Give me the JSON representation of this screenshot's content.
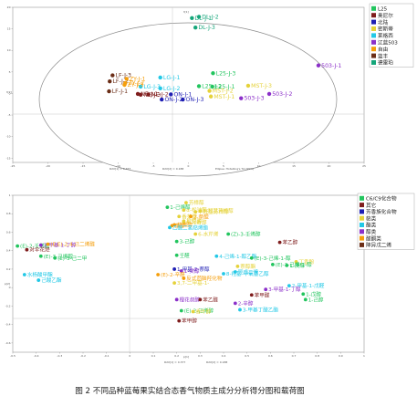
{
  "figure": {
    "caption": "图 2  不同品种蓝莓果实结合态香气物质主成分分析得分图和载荷图"
  },
  "chart_data": [
    {
      "type": "scatter",
      "plot": "score",
      "xlabel": "t[1]",
      "ylabel": "t[2]",
      "xlim": [
        -25,
        25
      ],
      "ylim": [
        -16,
        20
      ],
      "xticks": [
        -25,
        -20,
        -15,
        -10,
        -5,
        0,
        5,
        10,
        15,
        20,
        25
      ],
      "yticks": [
        -15,
        -10,
        -5,
        0,
        5,
        10,
        15,
        20
      ],
      "footer": [
        "R2X[1] = 0.377",
        "R2X[2] = 0.188",
        "Ellipse: Hotelling's T2 (95%)"
      ],
      "legend": [
        {
          "name": "L25",
          "color": "#22c55e"
        },
        {
          "name": "奥尼尔",
          "color": "#7f1d1d"
        },
        {
          "name": "北陆",
          "color": "#1e1eb4"
        },
        {
          "name": "密斯蒂",
          "color": "#e5d23a"
        },
        {
          "name": "莱格西",
          "color": "#22c8e6"
        },
        {
          "name": "辽蓝503",
          "color": "#8b2fc9"
        },
        {
          "name": "自由",
          "color": "#f59e0b"
        },
        {
          "name": "蓝丰",
          "color": "#6b2e17"
        },
        {
          "name": "德雷珀",
          "color": "#15a67a"
        }
      ],
      "points": [
        {
          "label": "DL-J-1",
          "x": 0.5,
          "y": 17.5,
          "series": 8
        },
        {
          "label": "DL-J-2",
          "x": 1.5,
          "y": 17.8,
          "series": 8
        },
        {
          "label": "DL-J-3",
          "x": 1.0,
          "y": 15.3,
          "series": 8
        },
        {
          "label": "L25-J-3",
          "x": 3.5,
          "y": 4.7,
          "series": 0
        },
        {
          "label": "L25-J-2",
          "x": 1.5,
          "y": 1.7,
          "series": 0
        },
        {
          "label": "L25-J-1",
          "x": 3.4,
          "y": 1.6,
          "series": 0
        },
        {
          "label": "503-J-1",
          "x": 18.5,
          "y": 6.5,
          "series": 5
        },
        {
          "label": "503-J-2",
          "x": 11.5,
          "y": -0.1,
          "series": 5
        },
        {
          "label": "503-J-3",
          "x": 7.5,
          "y": -1.1,
          "series": 5
        },
        {
          "label": "MST-J-3",
          "x": 8.5,
          "y": 1.8,
          "series": 3
        },
        {
          "label": "MST-J-2",
          "x": 3.0,
          "y": 0.6,
          "series": 3
        },
        {
          "label": "MST-J-1",
          "x": 3.2,
          "y": -0.7,
          "series": 3
        },
        {
          "label": "LF-J-3",
          "x": -10.8,
          "y": 4.2,
          "series": 7
        },
        {
          "label": "LF-J-2",
          "x": -11.2,
          "y": 2.8,
          "series": 7
        },
        {
          "label": "LF-J-1",
          "x": -11.3,
          "y": 0.5,
          "series": 7
        },
        {
          "label": "LG-J-1",
          "x": -4.0,
          "y": 3.7,
          "series": 4
        },
        {
          "label": "LG-J-2",
          "x": -4.0,
          "y": 1.2,
          "series": 4
        },
        {
          "label": "LG-J-3",
          "x": -6.8,
          "y": 1.6,
          "series": 4
        },
        {
          "label": "ZY-J-1",
          "x": -8.8,
          "y": 3.4,
          "series": 6
        },
        {
          "label": "ZY-J-2",
          "x": -9.0,
          "y": 2.4,
          "series": 6
        },
        {
          "label": "ZY-J-3",
          "x": -9.1,
          "y": 2.0,
          "series": 6
        },
        {
          "label": "NE-J-1",
          "x": -7.2,
          "y": -0.1,
          "series": 1
        },
        {
          "label": "NE-J-2",
          "x": -5.7,
          "y": -0.2,
          "series": 1
        },
        {
          "label": "NE-J-3",
          "x": -6.8,
          "y": -0.3,
          "series": 1
        },
        {
          "label": "ON-J-1",
          "x": -2.5,
          "y": -0.2,
          "series": 2
        },
        {
          "label": "ON-J-2",
          "x": -3.8,
          "y": -1.4,
          "series": 2
        },
        {
          "label": "ON-J-3",
          "x": -0.8,
          "y": -1.4,
          "series": 2
        }
      ]
    },
    {
      "type": "scatter",
      "plot": "loading",
      "xlabel": "p[1]",
      "ylabel": "p[2]",
      "xlim": [
        -0.5,
        1.0
      ],
      "ylim": [
        -0.7,
        1.0
      ],
      "xticks": [
        -0.5,
        -0.4,
        -0.3,
        -0.2,
        -0.1,
        0,
        0.1,
        0.2,
        0.3,
        0.4,
        0.5,
        0.6,
        0.7,
        0.8,
        0.9,
        1.0
      ],
      "yticks": [
        -0.6,
        -0.4,
        -0.2,
        0,
        0.2,
        0.4,
        0.6,
        0.8,
        1.0
      ],
      "footer": [
        "R2X[1] = 0.377",
        "R2X[2] = 0.188"
      ],
      "legend": [
        {
          "name": "C6/C9化合物",
          "color": "#22c55e"
        },
        {
          "name": "其它",
          "color": "#7f1d1d"
        },
        {
          "name": "芳香族化合物",
          "color": "#1e1eb4"
        },
        {
          "name": "萜类",
          "color": "#e5d23a"
        },
        {
          "name": "酯类",
          "color": "#22c8e6"
        },
        {
          "name": "醇类",
          "color": "#8b2fc9"
        },
        {
          "name": "醛酮类",
          "color": "#f59e0b"
        },
        {
          "name": "降异戊二烯",
          "color": "#6b2e17"
        }
      ],
      "points": [
        {
          "label": "1-己烯醇",
          "x": 0.16,
          "y": 0.87,
          "series": 0
        },
        {
          "label": "芳樟醇",
          "x": 0.24,
          "y": 0.92,
          "series": 3
        },
        {
          "label": "α-松油醇",
          "x": 0.23,
          "y": 0.84,
          "series": 3
        },
        {
          "label": "香茅醇",
          "x": 0.21,
          "y": 0.77,
          "series": 3
        },
        {
          "label": "橙花醇",
          "x": 0.23,
          "y": 0.72,
          "series": 3
        },
        {
          "label": "8-羟基芳樟醇",
          "x": 0.3,
          "y": 0.83,
          "series": 3
        },
        {
          "label": "4-羟基芳樟醇",
          "x": 0.28,
          "y": 0.82,
          "series": 3
        },
        {
          "label": "2-萘醌",
          "x": 0.26,
          "y": 0.77,
          "series": 6
        },
        {
          "label": "8-羟香醇",
          "x": 0.23,
          "y": 0.71,
          "series": 3
        },
        {
          "label": "萘醇",
          "x": 0.18,
          "y": 0.67,
          "series": 6
        },
        {
          "label": "萜烯醇",
          "x": 0.19,
          "y": 0.68,
          "series": 6
        },
        {
          "label": "乙酸二氢萜烯酯",
          "x": 0.17,
          "y": 0.65,
          "series": 4
        },
        {
          "label": "6-水芹烯",
          "x": 0.28,
          "y": 0.58,
          "series": 3
        },
        {
          "label": "(Z)-3-壬烯醇",
          "x": 0.42,
          "y": 0.58,
          "series": 0
        },
        {
          "label": "3-己醇",
          "x": 0.2,
          "y": 0.5,
          "series": 0
        },
        {
          "label": "苯乙醇",
          "x": 0.64,
          "y": 0.49,
          "series": 1
        },
        {
          "label": "(E)-2-壬烯醛",
          "x": -0.48,
          "y": 0.45,
          "series": 0
        },
        {
          "label": "3-甲基-1-丁醇",
          "x": -0.38,
          "y": 0.46,
          "series": 5
        },
        {
          "label": "(E,E)-2,4-己二烯醛",
          "x": -0.35,
          "y": 0.47,
          "series": 6
        },
        {
          "label": "对伞花烃",
          "x": -0.44,
          "y": 0.41,
          "series": 1
        },
        {
          "label": "(E)-3-己烯醇",
          "x": -0.38,
          "y": 0.34,
          "series": 0
        },
        {
          "label": "(E)-3-己二甲",
          "x": -0.32,
          "y": 0.32,
          "series": 0
        },
        {
          "label": "壬醛",
          "x": 0.2,
          "y": 0.35,
          "series": 0
        },
        {
          "label": "4-己烯-1-醇乙酯",
          "x": 0.37,
          "y": 0.34,
          "series": 4
        },
        {
          "label": "(E)-3-己烯-1-醇",
          "x": 0.52,
          "y": 0.32,
          "series": 0
        },
        {
          "label": "丁香酚",
          "x": 0.71,
          "y": 0.28,
          "series": 3
        },
        {
          "label": "1-庚醇",
          "x": 0.67,
          "y": 0.24,
          "series": 0
        },
        {
          "label": "(E)-3-己烯-1-醇",
          "x": 0.61,
          "y": 0.25,
          "series": 0
        },
        {
          "label": "萘醇酯",
          "x": 0.46,
          "y": 0.23,
          "series": 3
        },
        {
          "label": "1-甲基-2-萘醇",
          "x": 0.19,
          "y": 0.2,
          "series": 2
        },
        {
          "label": "1-癸醇",
          "x": 0.22,
          "y": 0.18,
          "series": 5
        },
        {
          "label": "8-羟基-甲氧基乙醇",
          "x": 0.4,
          "y": 0.15,
          "series": 4
        },
        {
          "label": "异戊二烯",
          "x": 0.45,
          "y": 0.17,
          "series": 4
        },
        {
          "label": "水杨酸甲酯",
          "x": -0.45,
          "y": 0.14,
          "series": 4
        },
        {
          "label": "己酸乙酯",
          "x": -0.39,
          "y": 0.08,
          "series": 4
        },
        {
          "label": "(E)-2-辛醛",
          "x": 0.12,
          "y": 0.14,
          "series": 6
        },
        {
          "label": "反式茴脑羟化物",
          "x": 0.23,
          "y": 0.1,
          "series": 6
        },
        {
          "label": "3,7-二甲基-1-",
          "x": 0.19,
          "y": 0.05,
          "series": 3
        },
        {
          "label": "2-甲基-1-戊醛",
          "x": 0.68,
          "y": 0.02,
          "series": 4
        },
        {
          "label": "3-甲基-1-丁醇",
          "x": 0.58,
          "y": -0.02,
          "series": 5
        },
        {
          "label": "苯甲醛",
          "x": 0.52,
          "y": -0.08,
          "series": 1
        },
        {
          "label": "1-己醇",
          "x": 0.75,
          "y": -0.13,
          "series": 0
        },
        {
          "label": "1-戊醇",
          "x": 0.74,
          "y": -0.07,
          "series": 0
        },
        {
          "label": "橙花叔醇",
          "x": 0.2,
          "y": -0.13,
          "series": 5
        },
        {
          "label": "苯乙醛",
          "x": 0.3,
          "y": -0.13,
          "series": 1
        },
        {
          "label": "2-辛醇",
          "x": 0.45,
          "y": -0.17,
          "series": 5
        },
        {
          "label": "3-甲基丁酸乙酯",
          "x": 0.47,
          "y": -0.24,
          "series": 4
        },
        {
          "label": "(E)-2-己烯醇",
          "x": 0.22,
          "y": -0.25,
          "series": 0
        },
        {
          "label": "香叶醇",
          "x": 0.27,
          "y": -0.26,
          "series": 3
        },
        {
          "label": "苯甲醇",
          "x": 0.21,
          "y": -0.36,
          "series": 1
        }
      ]
    }
  ]
}
